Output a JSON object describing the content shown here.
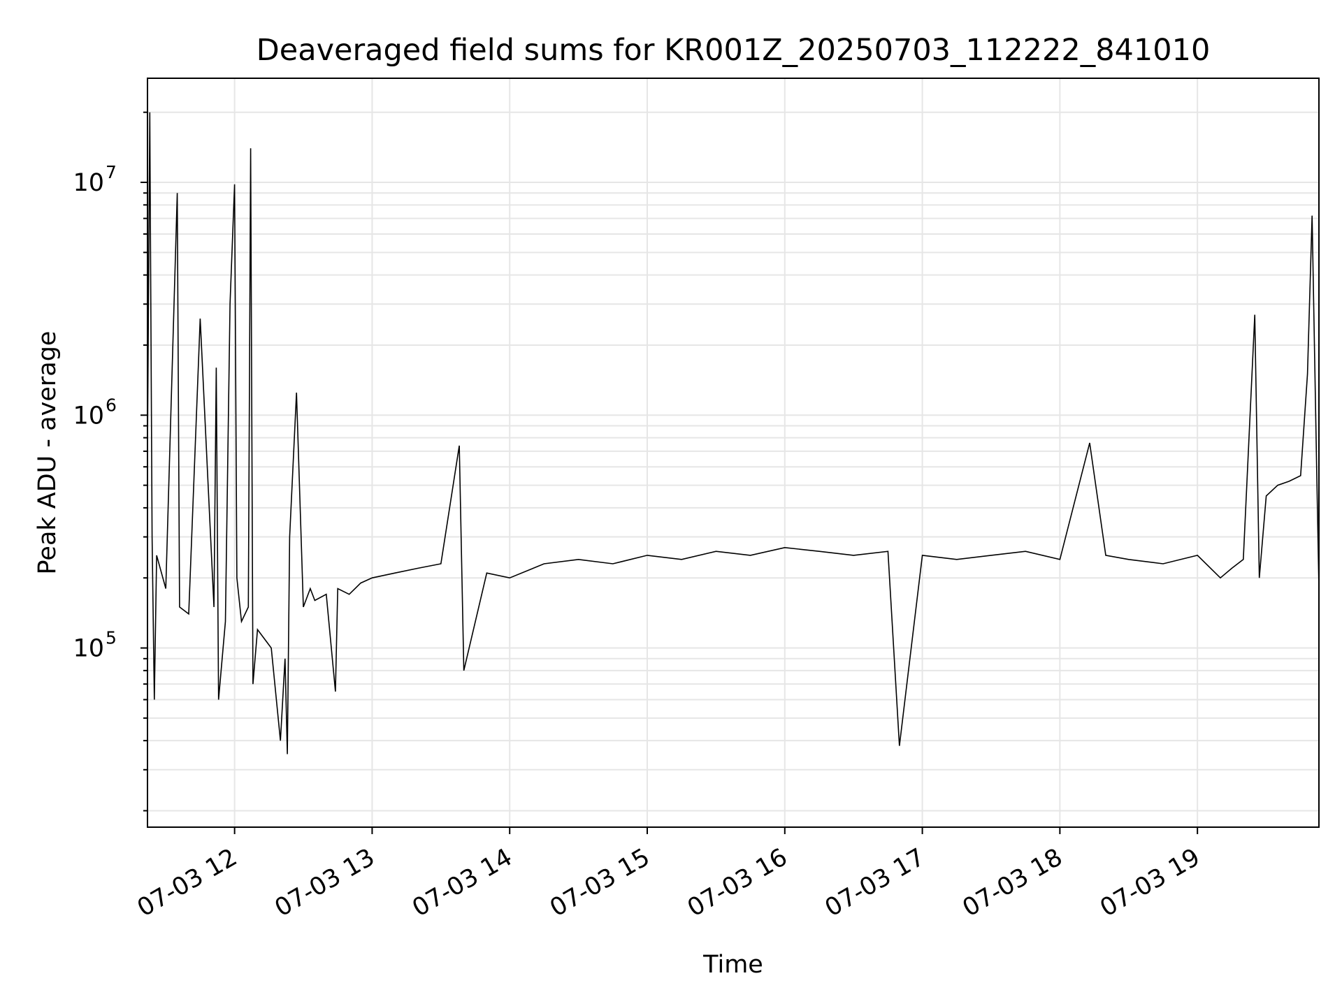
{
  "chart_data": {
    "type": "line",
    "title": "Deaveraged field sums for KR001Z_20250703_112222_841010",
    "xlabel": "Time",
    "ylabel": "Peak ADU - average",
    "yscale": "log",
    "xlim": [
      "2025-07-03 11:22",
      "2025-07-03 19:53"
    ],
    "ylim": [
      17000,
      28000000
    ],
    "grid": true,
    "line_color": "#000000",
    "grid_color": "#e6e6e6",
    "x_ticks": [
      {
        "value": "2025-07-03 12:00",
        "label": "07-03 12"
      },
      {
        "value": "2025-07-03 13:00",
        "label": "07-03 13"
      },
      {
        "value": "2025-07-03 14:00",
        "label": "07-03 14"
      },
      {
        "value": "2025-07-03 15:00",
        "label": "07-03 15"
      },
      {
        "value": "2025-07-03 16:00",
        "label": "07-03 16"
      },
      {
        "value": "2025-07-03 17:00",
        "label": "07-03 17"
      },
      {
        "value": "2025-07-03 18:00",
        "label": "07-03 18"
      },
      {
        "value": "2025-07-03 19:00",
        "label": "07-03 19"
      }
    ],
    "y_ticks": [
      {
        "value": 100000,
        "base": "10",
        "exp": "5"
      },
      {
        "value": 1000000,
        "base": "10",
        "exp": "6"
      },
      {
        "value": 10000000,
        "base": "10",
        "exp": "7"
      }
    ],
    "series": [
      {
        "x": [
          "2025-07-03 11:22",
          "2025-07-03 11:23",
          "2025-07-03 11:24",
          "2025-07-03 11:25",
          "2025-07-03 11:26",
          "2025-07-03 11:30",
          "2025-07-03 11:35",
          "2025-07-03 11:36",
          "2025-07-03 11:40",
          "2025-07-03 11:45",
          "2025-07-03 11:51",
          "2025-07-03 11:52",
          "2025-07-03 11:53",
          "2025-07-03 11:56",
          "2025-07-03 11:58",
          "2025-07-03 12:00",
          "2025-07-03 12:01",
          "2025-07-03 12:03",
          "2025-07-03 12:06",
          "2025-07-03 12:07",
          "2025-07-03 12:08",
          "2025-07-03 12:10",
          "2025-07-03 12:16",
          "2025-07-03 12:20",
          "2025-07-03 12:22",
          "2025-07-03 12:23",
          "2025-07-03 12:24",
          "2025-07-03 12:27",
          "2025-07-03 12:30",
          "2025-07-03 12:33",
          "2025-07-03 12:35",
          "2025-07-03 12:40",
          "2025-07-03 12:44",
          "2025-07-03 12:45",
          "2025-07-03 12:50",
          "2025-07-03 12:55",
          "2025-07-03 13:00",
          "2025-07-03 13:10",
          "2025-07-03 13:20",
          "2025-07-03 13:30",
          "2025-07-03 13:38",
          "2025-07-03 13:40",
          "2025-07-03 13:50",
          "2025-07-03 14:00",
          "2025-07-03 14:15",
          "2025-07-03 14:30",
          "2025-07-03 14:45",
          "2025-07-03 15:00",
          "2025-07-03 15:15",
          "2025-07-03 15:30",
          "2025-07-03 15:45",
          "2025-07-03 16:00",
          "2025-07-03 16:15",
          "2025-07-03 16:30",
          "2025-07-03 16:45",
          "2025-07-03 16:50",
          "2025-07-03 17:00",
          "2025-07-03 17:15",
          "2025-07-03 17:30",
          "2025-07-03 17:45",
          "2025-07-03 18:00",
          "2025-07-03 18:13",
          "2025-07-03 18:20",
          "2025-07-03 18:30",
          "2025-07-03 18:45",
          "2025-07-03 19:00",
          "2025-07-03 19:10",
          "2025-07-03 19:15",
          "2025-07-03 19:20",
          "2025-07-03 19:25",
          "2025-07-03 19:27",
          "2025-07-03 19:30",
          "2025-07-03 19:35",
          "2025-07-03 19:40",
          "2025-07-03 19:45",
          "2025-07-03 19:48",
          "2025-07-03 19:50",
          "2025-07-03 19:52",
          "2025-07-03 19:53"
        ],
        "y": [
          700000,
          20000000,
          300000,
          60000,
          250000,
          180000,
          9000000,
          150000,
          140000,
          2600000,
          150000,
          1600000,
          60000,
          130000,
          3000000,
          9800000,
          200000,
          130000,
          150000,
          14000000,
          70000,
          120000,
          100000,
          40000,
          90000,
          35000,
          300000,
          1250000,
          150000,
          180000,
          160000,
          170000,
          65000,
          180000,
          170000,
          190000,
          200000,
          210000,
          220000,
          230000,
          740000,
          80000,
          210000,
          200000,
          230000,
          240000,
          230000,
          250000,
          240000,
          260000,
          250000,
          270000,
          260000,
          250000,
          260000,
          38000,
          250000,
          240000,
          250000,
          260000,
          240000,
          760000,
          250000,
          240000,
          230000,
          250000,
          200000,
          220000,
          240000,
          2700000,
          200000,
          450000,
          500000,
          520000,
          550000,
          1500000,
          7200000,
          600000,
          180000
        ]
      }
    ]
  }
}
